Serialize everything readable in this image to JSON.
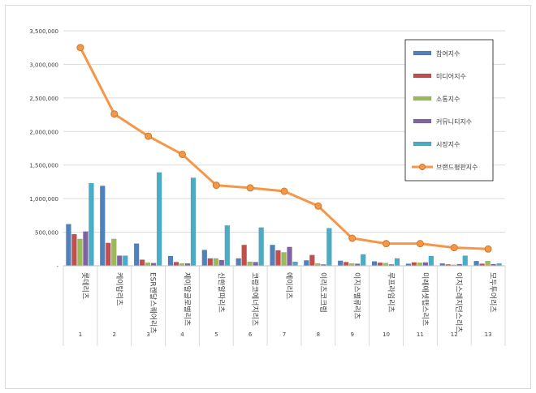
{
  "chart_data": {
    "type": "bar",
    "title": "",
    "xlabel": "",
    "ylabel": "",
    "ylim": [
      0,
      3500000
    ],
    "yticks": [
      0,
      500000,
      1000000,
      1500000,
      2000000,
      2500000,
      3000000,
      3500000
    ],
    "ytick_labels": [
      "-",
      "500,000",
      "1,000,000",
      "1,500,000",
      "2,000,000",
      "2,500,000",
      "3,000,000",
      "3,500,000"
    ],
    "grid": true,
    "legend_position": "top-right",
    "categories": [
      "1",
      "2",
      "3",
      "4",
      "5",
      "6",
      "7",
      "8",
      "9",
      "10",
      "11",
      "12",
      "13"
    ],
    "category_names": [
      "롯데리츠",
      "케이탑리츠",
      "ESR켄달스퀘어리츠",
      "제이알글로벌리츠",
      "신한알파리츠",
      "코람코에너지리츠",
      "에이리츠",
      "이리츠코크렙",
      "이지스밸류리츠",
      "루프라임리츠",
      "미래에셋맵스리츠",
      "이지스레지던스리츠",
      "모두투어리츠"
    ],
    "series": [
      {
        "name": "참여지수",
        "type": "bar",
        "color": "#4f81bd",
        "values": [
          620000,
          1190000,
          330000,
          145000,
          235000,
          110000,
          310000,
          80000,
          75000,
          65000,
          30000,
          35000,
          70000
        ]
      },
      {
        "name": "미디어지수",
        "type": "bar",
        "color": "#c0504d",
        "values": [
          470000,
          340000,
          90000,
          55000,
          110000,
          310000,
          230000,
          160000,
          55000,
          45000,
          50000,
          20000,
          30000
        ]
      },
      {
        "name": "소통지수",
        "type": "bar",
        "color": "#9bbb59",
        "values": [
          400000,
          400000,
          45000,
          35000,
          110000,
          60000,
          200000,
          35000,
          35000,
          40000,
          45000,
          15000,
          70000
        ]
      },
      {
        "name": "커뮤니티지수",
        "type": "bar",
        "color": "#8064a2",
        "values": [
          510000,
          150000,
          40000,
          35000,
          85000,
          55000,
          280000,
          20000,
          30000,
          20000,
          50000,
          25000,
          25000
        ]
      },
      {
        "name": "시장지수",
        "type": "bar",
        "color": "#4bacc6",
        "values": [
          1230000,
          150000,
          1390000,
          1310000,
          600000,
          570000,
          60000,
          560000,
          170000,
          110000,
          145000,
          150000,
          35000
        ]
      },
      {
        "name": "브랜드평판지수",
        "type": "line",
        "color": "#f79646",
        "values": [
          3250000,
          2260000,
          1930000,
          1660000,
          1200000,
          1160000,
          1110000,
          890000,
          410000,
          330000,
          330000,
          270000,
          250000
        ]
      }
    ]
  }
}
